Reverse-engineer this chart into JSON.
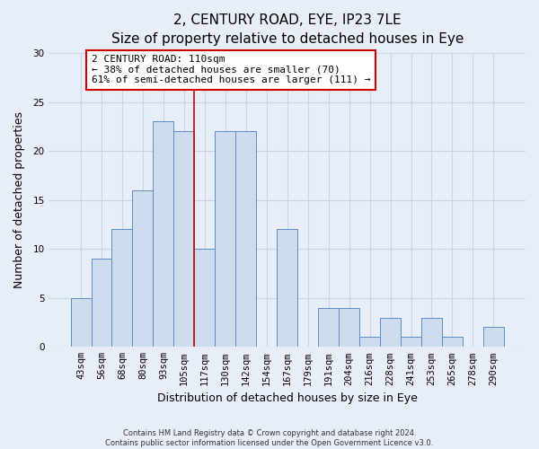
{
  "title": "2, CENTURY ROAD, EYE, IP23 7LE",
  "subtitle": "Size of property relative to detached houses in Eye",
  "xlabel": "Distribution of detached houses by size in Eye",
  "ylabel": "Number of detached properties",
  "footer_line1": "Contains HM Land Registry data © Crown copyright and database right 2024.",
  "footer_line2": "Contains public sector information licensed under the Open Government Licence v3.0.",
  "bar_labels": [
    "43sqm",
    "56sqm",
    "68sqm",
    "80sqm",
    "93sqm",
    "105sqm",
    "117sqm",
    "130sqm",
    "142sqm",
    "154sqm",
    "167sqm",
    "179sqm",
    "191sqm",
    "204sqm",
    "216sqm",
    "228sqm",
    "241sqm",
    "253sqm",
    "265sqm",
    "278sqm",
    "290sqm"
  ],
  "bar_values": [
    5,
    9,
    12,
    16,
    23,
    22,
    10,
    22,
    22,
    0,
    12,
    0,
    4,
    4,
    1,
    3,
    1,
    3,
    1,
    0,
    2
  ],
  "bar_color": "#cddcee",
  "bar_edge_color": "#5b8cc8",
  "vline_color": "#cc0000",
  "vline_x": 5.5,
  "annotation_text": "2 CENTURY ROAD: 110sqm\n← 38% of detached houses are smaller (70)\n61% of semi-detached houses are larger (111) →",
  "annotation_box_edge_color": "#cc0000",
  "annotation_box_face_color": "#ffffff",
  "ylim": [
    0,
    30
  ],
  "yticks": [
    0,
    5,
    10,
    15,
    20,
    25,
    30
  ],
  "background_color": "#e8eef8",
  "plot_background_color": "#e8eef8",
  "grid_color": "#c8d4e8",
  "title_fontsize": 11,
  "axis_label_fontsize": 9,
  "tick_fontsize": 7.5,
  "annotation_fontsize": 8,
  "footer_fontsize": 6
}
